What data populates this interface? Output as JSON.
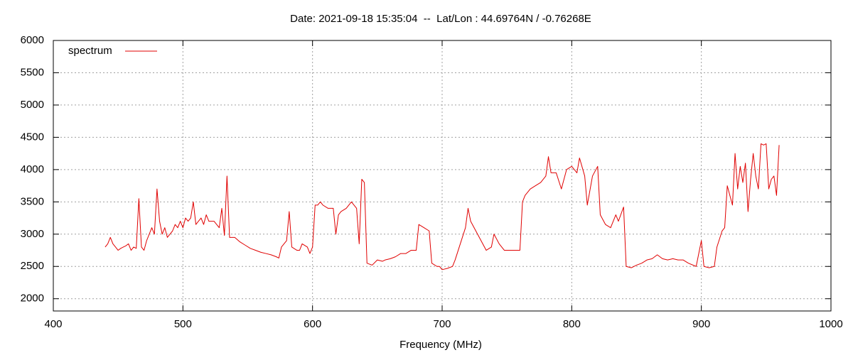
{
  "chart_data": {
    "type": "line",
    "title": "Date: 2021-09-18 15:35:04  --  Lat/Lon : 44.69764N / -0.76268E",
    "x_label": "Frequency (MHz)",
    "xlim": [
      400,
      1000
    ],
    "xticks": [
      400,
      500,
      600,
      700,
      800,
      900,
      1000
    ],
    "ylim": [
      1810,
      6000
    ],
    "yticks": [
      2000,
      2500,
      3000,
      3500,
      4000,
      4500,
      5000,
      5500,
      6000
    ],
    "grid": true,
    "legend": "top-left",
    "x": [
      440,
      442,
      444,
      446,
      448,
      450,
      452,
      454,
      456,
      458,
      460,
      462,
      464,
      466,
      468,
      470,
      472,
      474,
      476,
      478,
      480,
      482,
      484,
      486,
      488,
      490,
      492,
      494,
      496,
      498,
      500,
      502,
      504,
      506,
      508,
      510,
      512,
      514,
      516,
      518,
      520,
      524,
      528,
      530,
      532,
      534,
      536,
      540,
      544,
      548,
      552,
      556,
      560,
      564,
      568,
      572,
      574,
      576,
      578,
      580,
      582,
      584,
      588,
      590,
      592,
      596,
      598,
      600,
      602,
      604,
      606,
      608,
      612,
      616,
      618,
      620,
      622,
      626,
      630,
      634,
      636,
      638,
      640,
      642,
      646,
      650,
      654,
      656,
      660,
      664,
      668,
      672,
      676,
      680,
      682,
      686,
      690,
      692,
      696,
      698,
      700,
      704,
      708,
      710,
      714,
      718,
      720,
      722,
      726,
      730,
      734,
      738,
      740,
      744,
      748,
      752,
      756,
      760,
      762,
      764,
      768,
      772,
      776,
      780,
      782,
      784,
      788,
      792,
      796,
      800,
      804,
      806,
      810,
      812,
      816,
      820,
      822,
      826,
      830,
      834,
      836,
      840,
      842,
      846,
      850,
      854,
      858,
      862,
      866,
      870,
      874,
      878,
      882,
      886,
      890,
      896,
      900,
      902,
      906,
      910,
      912,
      916,
      918,
      920,
      924,
      926,
      928,
      930,
      932,
      934,
      936,
      938,
      940,
      942,
      944,
      946,
      948,
      950,
      952,
      954,
      956,
      958,
      960
    ],
    "series": [
      {
        "name": "spectrum",
        "color": "#e00000",
        "values": [
          2800,
          2850,
          2950,
          2850,
          2800,
          2750,
          2780,
          2800,
          2820,
          2850,
          2750,
          2800,
          2780,
          3550,
          2800,
          2750,
          2900,
          3000,
          3100,
          3000,
          3700,
          3200,
          3000,
          3100,
          2950,
          3000,
          3050,
          3150,
          3100,
          3200,
          3100,
          3250,
          3200,
          3250,
          3500,
          3150,
          3200,
          3250,
          3150,
          3300,
          3200,
          3200,
          3100,
          3400,
          2980,
          3900,
          2950,
          2950,
          2880,
          2830,
          2780,
          2750,
          2720,
          2700,
          2680,
          2650,
          2630,
          2800,
          2850,
          2900,
          3350,
          2800,
          2750,
          2750,
          2850,
          2800,
          2700,
          2800,
          3450,
          3450,
          3500,
          3450,
          3400,
          3400,
          3000,
          3300,
          3350,
          3400,
          3500,
          3400,
          2850,
          3850,
          3800,
          2550,
          2520,
          2600,
          2580,
          2600,
          2620,
          2650,
          2700,
          2700,
          2750,
          2750,
          3150,
          3100,
          3050,
          2550,
          2500,
          2500,
          2450,
          2470,
          2500,
          2600,
          2850,
          3100,
          3400,
          3200,
          3050,
          2900,
          2750,
          2800,
          3000,
          2850,
          2750,
          2750,
          2750,
          2750,
          3500,
          3600,
          3700,
          3750,
          3800,
          3900,
          4200,
          3950,
          3950,
          3700,
          4000,
          4050,
          3950,
          4180,
          3900,
          3450,
          3900,
          4050,
          3300,
          3150,
          3100,
          3300,
          3200,
          3420,
          2500,
          2480,
          2520,
          2550,
          2600,
          2620,
          2680,
          2620,
          2600,
          2620,
          2600,
          2600,
          2550,
          2500,
          2900,
          2500,
          2480,
          2500,
          2800,
          3050,
          3100,
          3750,
          3450,
          4250,
          3700,
          4050,
          3800,
          4100,
          3350,
          3850,
          4250,
          3900,
          3700,
          4400,
          4380,
          4400,
          3700,
          3850,
          3900,
          3600,
          4380
        ]
      }
    ]
  }
}
